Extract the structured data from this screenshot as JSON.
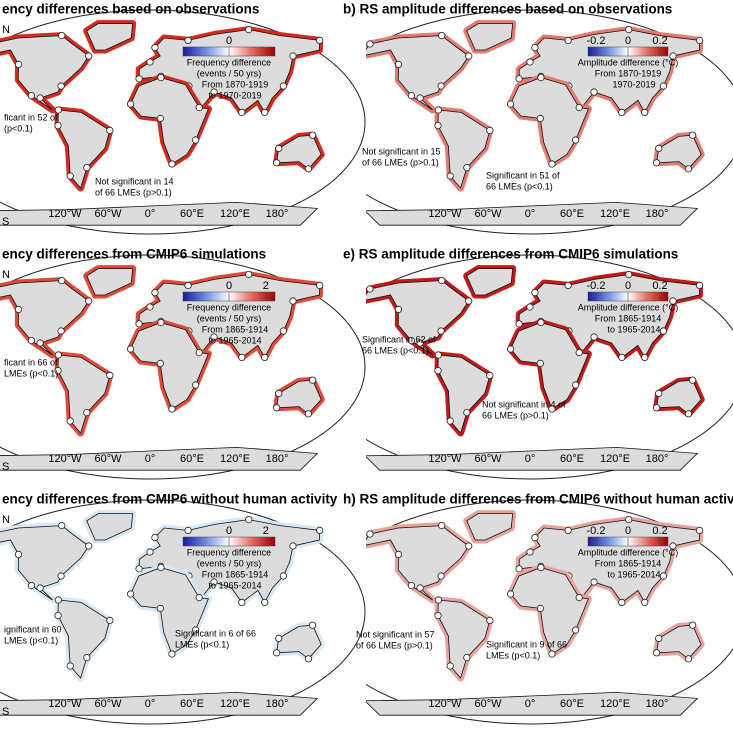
{
  "lon_labels": [
    "120°W",
    "60°W",
    "0°",
    "60°E",
    "120°E",
    "180°"
  ],
  "lat_labels": [
    "N",
    "S"
  ],
  "panels": [
    {
      "title": "ency differences based on observations",
      "colorbar": {
        "clim": [
          -2.5,
          2.5
        ],
        "ticks": [
          0
        ],
        "lines": [
          "Frequency difference",
          "(events / 50 yrs)",
          "From 1870-1919",
          "to 1970-2019"
        ]
      },
      "annotations": [
        {
          "lines": [
            "ficant in 52 of",
            "(p<0.1)"
          ]
        },
        {
          "lines": [
            "Not significant in 14",
            "of 66 LMEs (p>0.1)"
          ]
        }
      ]
    },
    {
      "title": "b) RS amplitude differences based on observations",
      "colorbar": {
        "clim": [
          -0.25,
          0.25
        ],
        "ticks": [
          -0.2,
          0,
          0.2
        ],
        "lines": [
          "Amplitude difference (°C)",
          "From 1870-1919",
          "1970-2019"
        ]
      },
      "annotations": [
        {
          "lines": [
            "Not significant in 15",
            "of 66 LMEs (p>0.1)"
          ]
        },
        {
          "lines": [
            "Significant in 51 of",
            "66 LMEs (p<0.1)"
          ]
        }
      ]
    },
    {
      "title": "ency differences from CMIP6 simulations",
      "colorbar": {
        "clim": [
          -2.5,
          2.5
        ],
        "ticks": [
          0,
          2
        ],
        "lines": [
          "Frequency difference",
          "(events / 50 yrs)",
          "From 1865-1914",
          "to 1965-2014"
        ]
      },
      "annotations": [
        {
          "lines": [
            "ficant in 66 of",
            "LMEs (p<0.1)"
          ]
        }
      ]
    },
    {
      "title": "e) RS amplitude differences from CMIP6 simulations",
      "colorbar": {
        "clim": [
          -0.25,
          0.25
        ],
        "ticks": [
          -0.2,
          0,
          0.2
        ],
        "lines": [
          "Amplitude difference (°C)",
          "From 1865-1914",
          "to 1965-2014"
        ]
      },
      "annotations": [
        {
          "lines": [
            "Significant in 62 of",
            "66 LMEs (p<0.1)"
          ]
        },
        {
          "lines": [
            "Not significant in 4 of",
            "66 LMEs (p>0.1)"
          ]
        }
      ]
    },
    {
      "title": "ency differences from CMIP6 without human activity",
      "colorbar": {
        "clim": [
          -2.5,
          2.5
        ],
        "ticks": [
          0,
          2
        ],
        "lines": [
          "Frequency difference",
          "(events / 50 yrs)",
          "From 1865-1914",
          "to 1965-2014"
        ]
      },
      "annotations": [
        {
          "lines": [
            "ignificant in 60",
            "LMEs (p<0.1)"
          ]
        },
        {
          "lines": [
            "Significant in 6 of 66",
            "LMEs (p<0.1)"
          ]
        }
      ]
    },
    {
      "title": "h) RS amplitude differences from CMIP6 without human activ",
      "colorbar": {
        "clim": [
          -0.25,
          0.25
        ],
        "ticks": [
          -0.2,
          0,
          0.2
        ],
        "lines": [
          "Amplitude difference (°C)",
          "From 1865-1914",
          "to 1965-2014"
        ]
      },
      "annotations": [
        {
          "lines": [
            "Not significant in 57",
            "of 66 LMEs (p>0.1)"
          ]
        },
        {
          "lines": [
            "Significant in 9 of 66",
            "LMEs (p<0.1)"
          ]
        }
      ]
    }
  ]
}
